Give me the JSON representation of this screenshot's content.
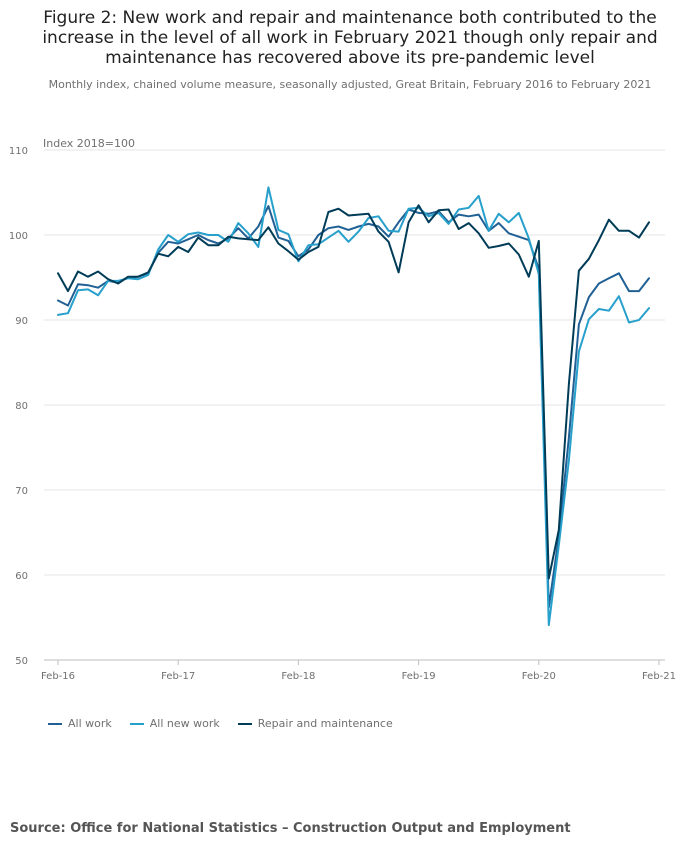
{
  "title": "Figure 2: New work and repair and maintenance both contributed to the increase in the level of all work in February 2021 though only repair and maintenance has recovered above its pre-pandemic level",
  "subtitle": "Monthly index, chained volume measure, seasonally adjusted, Great Britain, February 2016 to February 2021",
  "source": "Source: Office for National Statistics – Construction Output and Employment",
  "chart_data": {
    "type": "line",
    "unit_label": "Index 2018=100",
    "ylim": [
      50,
      110
    ],
    "y_ticks": [
      "50",
      "60",
      "70",
      "80",
      "90",
      "100",
      "110"
    ],
    "x_ticks": [
      {
        "index": 0,
        "label": "Feb-16"
      },
      {
        "index": 12,
        "label": "Feb-17"
      },
      {
        "index": 24,
        "label": "Feb-18"
      },
      {
        "index": 36,
        "label": "Feb-19"
      },
      {
        "index": 48,
        "label": "Feb-20"
      },
      {
        "index": 60,
        "label": "Feb-21"
      }
    ],
    "grid": true,
    "legend_position": "bottom-left",
    "x": [
      "Feb-16",
      "Mar-16",
      "Apr-16",
      "May-16",
      "Jun-16",
      "Jul-16",
      "Aug-16",
      "Sep-16",
      "Oct-16",
      "Nov-16",
      "Dec-16",
      "Jan-17",
      "Feb-17",
      "Mar-17",
      "Apr-17",
      "May-17",
      "Jun-17",
      "Jul-17",
      "Aug-17",
      "Sep-17",
      "Oct-17",
      "Nov-17",
      "Dec-17",
      "Jan-18",
      "Feb-18",
      "Mar-18",
      "Apr-18",
      "May-18",
      "Jun-18",
      "Jul-18",
      "Aug-18",
      "Sep-18",
      "Oct-18",
      "Nov-18",
      "Dec-18",
      "Jan-19",
      "Feb-19",
      "Mar-19",
      "Apr-19",
      "May-19",
      "Jun-19",
      "Jul-19",
      "Aug-19",
      "Sep-19",
      "Oct-19",
      "Nov-19",
      "Dec-19",
      "Jan-20",
      "Feb-20",
      "Mar-20",
      "Apr-20",
      "May-20",
      "Jun-20",
      "Jul-20",
      "Aug-20",
      "Sep-20",
      "Oct-20",
      "Nov-20",
      "Dec-20",
      "Jan-21",
      "Feb-21"
    ],
    "series": [
      {
        "name": "All work",
        "color": "#206095",
        "values": [
          92.3,
          91.7,
          94.2,
          94.1,
          93.8,
          94.6,
          94.4,
          95.0,
          95.1,
          95.5,
          97.9,
          99.2,
          99.0,
          99.5,
          100.0,
          99.4,
          99.0,
          99.6,
          100.8,
          99.6,
          101.0,
          103.4,
          99.7,
          99.3,
          97.5,
          98.3,
          100.0,
          100.8,
          101.0,
          100.6,
          101.0,
          101.3,
          101.0,
          99.8,
          101.5,
          103.0,
          102.6,
          102.5,
          102.8,
          101.5,
          102.4,
          102.2,
          102.4,
          100.5,
          101.4,
          100.2,
          99.8,
          99.4,
          96.0,
          56.2,
          64.5,
          76.2,
          89.5,
          92.7,
          94.3,
          94.9,
          95.5,
          93.4,
          93.4,
          94.9,
          null
        ]
      },
      {
        "name": "All new work",
        "color": "#27a0cc",
        "values": [
          90.6,
          90.8,
          93.5,
          93.6,
          92.9,
          94.6,
          94.6,
          94.9,
          94.8,
          95.3,
          98.3,
          100.0,
          99.2,
          100.1,
          100.3,
          100.0,
          100.0,
          99.2,
          101.4,
          100.2,
          98.6,
          105.6,
          100.6,
          100.1,
          96.9,
          98.8,
          98.9,
          99.7,
          100.5,
          99.2,
          100.4,
          102.0,
          102.2,
          100.5,
          100.4,
          103.1,
          103.2,
          102.2,
          102.6,
          101.3,
          103.0,
          103.2,
          104.6,
          100.5,
          102.5,
          101.5,
          102.6,
          99.6,
          95.4,
          54.1,
          63.5,
          73.5,
          86.3,
          90.1,
          91.3,
          91.1,
          92.8,
          89.7,
          90.0,
          91.4,
          null
        ]
      },
      {
        "name": "Repair and maintenance",
        "color": "#003c57",
        "values": [
          95.5,
          93.4,
          95.7,
          95.1,
          95.7,
          94.8,
          94.3,
          95.1,
          95.1,
          95.6,
          97.8,
          97.5,
          98.6,
          98.0,
          99.7,
          98.8,
          98.8,
          99.8,
          99.6,
          99.5,
          99.4,
          100.9,
          99.0,
          98.1,
          97.1,
          98.0,
          98.6,
          102.7,
          103.1,
          102.3,
          102.4,
          102.5,
          100.4,
          99.2,
          95.6,
          101.5,
          103.5,
          101.5,
          102.9,
          103.0,
          100.7,
          101.4,
          100.2,
          98.5,
          98.7,
          99.0,
          97.7,
          95.1,
          99.3,
          59.6,
          65.3,
          82.5,
          95.8,
          97.2,
          99.4,
          101.8,
          100.5,
          100.5,
          99.7,
          101.5,
          null
        ]
      }
    ]
  }
}
